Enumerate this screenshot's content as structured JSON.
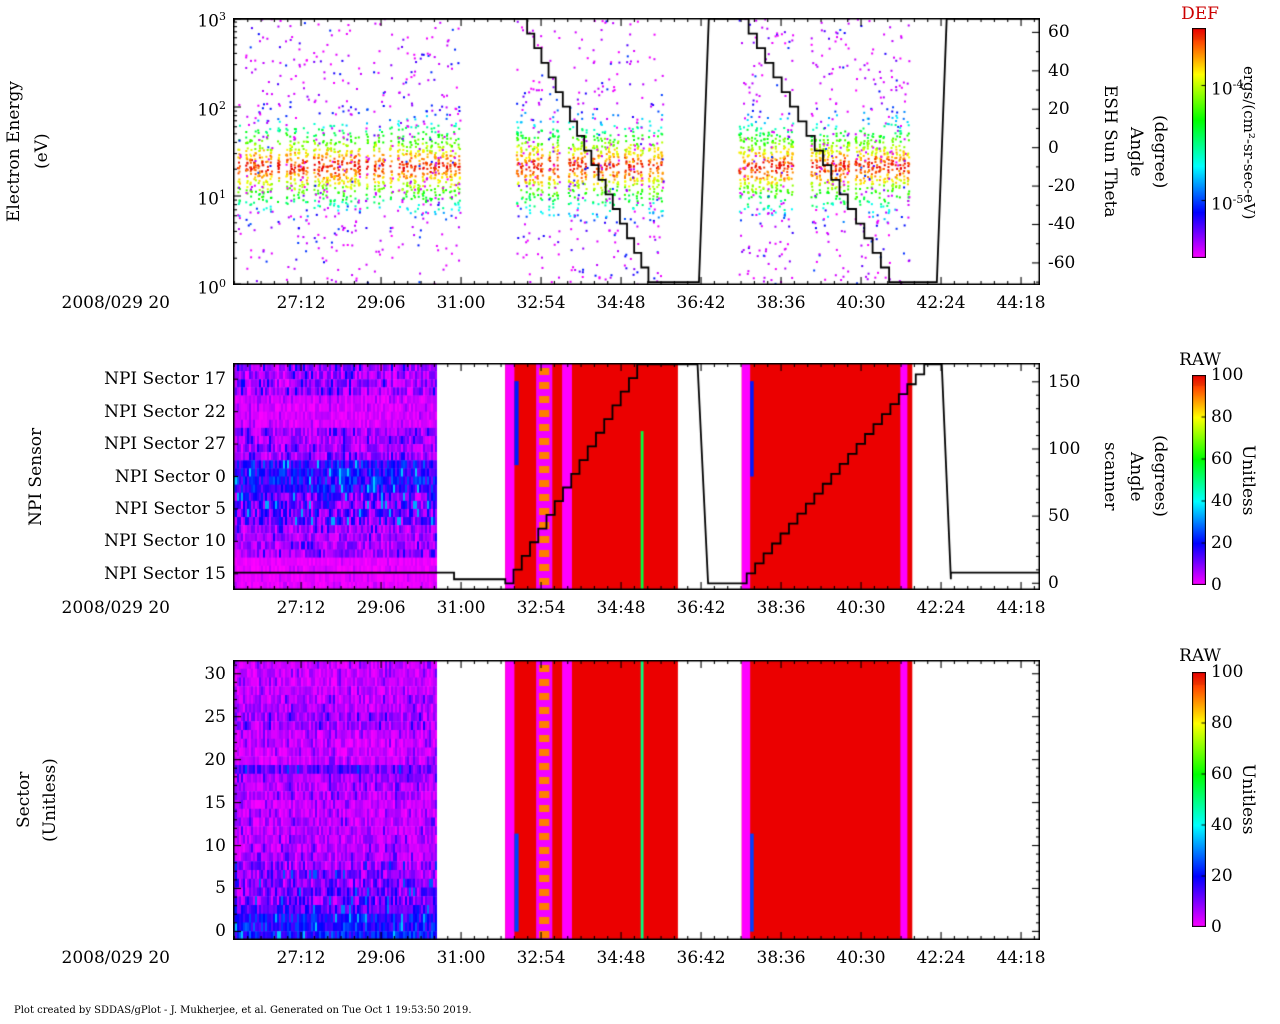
{
  "figure": {
    "background": "#ffffff"
  },
  "footer": {
    "credit": "Plot created by SDDAS/gPlot - J. Mukherjee, et al.  Generated on Tue Oct 1 19:53:50 2019."
  },
  "chart_data": [
    {
      "id": "electron-energy-spectrogram",
      "type": "heatmap",
      "left_title_lines": [
        "Electron Energy",
        "(eV)"
      ],
      "y_axis": {
        "scale": "log",
        "unit": "eV",
        "range_exp": [
          0,
          3
        ],
        "ticks": [
          {
            "base": "10",
            "exp": "3",
            "value": 3
          },
          {
            "base": "10",
            "exp": "2",
            "value": 2
          },
          {
            "base": "10",
            "exp": "1",
            "value": 1
          },
          {
            "base": "10",
            "exp": "0",
            "value": 0
          }
        ]
      },
      "right_axis": {
        "label_lines": [
          "ESH Sun Theta",
          "Angle",
          "(degree)"
        ],
        "ticks": [
          60,
          40,
          20,
          0,
          -20,
          -40,
          -60
        ],
        "minor_step": 10,
        "range": [
          -71.5,
          67.5
        ]
      },
      "x_axis": {
        "date_label": "2008/029 20",
        "range_seconds": [
          1535,
          2685
        ],
        "minor_divisions": 6,
        "ticks": [
          {
            "label": "27:12",
            "t": 1632
          },
          {
            "label": "29:06",
            "t": 1746
          },
          {
            "label": "31:00",
            "t": 1860
          },
          {
            "label": "32:54",
            "t": 1974
          },
          {
            "label": "34:48",
            "t": 2088
          },
          {
            "label": "36:42",
            "t": 2202
          },
          {
            "label": "38:36",
            "t": 2316
          },
          {
            "label": "40:30",
            "t": 2430
          },
          {
            "label": "42:24",
            "t": 2544
          },
          {
            "label": "44:18",
            "t": 2658
          }
        ]
      },
      "colorbar": {
        "title": "DEF",
        "title_color": "#cc0000",
        "unit_label": "ergs/(cm²-sr-sec-eV)",
        "scale": "log",
        "range_exp": [
          -5.5,
          -3.5
        ],
        "ticks": [
          {
            "base": "10",
            "exp": "-4",
            "value": -4
          },
          {
            "base": "10",
            "exp": "-5",
            "value": -5
          }
        ]
      },
      "spectrum": {
        "peak_log_energy": 1.34,
        "sigma": 0.26
      },
      "bursts": [
        {
          "t0": 1535,
          "t1": 1855
        },
        {
          "t0": 1938,
          "t1": 2145
        },
        {
          "t0": 2255,
          "t1": 2500
        }
      ],
      "line": {
        "name": "esh-sun-theta-angle",
        "color": "#000000",
        "segments": [
          {
            "type": "flat",
            "t0": 1535,
            "t1": 1944,
            "v": 67
          },
          {
            "type": "stair",
            "t0": 1944,
            "t1": 2127,
            "v0": 67,
            "v1": -70,
            "steps": 18
          },
          {
            "type": "flat",
            "t0": 2127,
            "t1": 2199,
            "v": -70
          },
          {
            "type": "ramp",
            "t0": 2199,
            "t1": 2213,
            "v0": -70,
            "v1": 67
          },
          {
            "type": "flat",
            "t0": 2213,
            "t1": 2258,
            "v": 67
          },
          {
            "type": "stair",
            "t0": 2258,
            "t1": 2470,
            "v0": 67,
            "v1": -70,
            "steps": 18
          },
          {
            "type": "flat",
            "t0": 2470,
            "t1": 2538,
            "v": -70
          },
          {
            "type": "ramp",
            "t0": 2538,
            "t1": 2552,
            "v0": -70,
            "v1": 67
          },
          {
            "type": "flat",
            "t0": 2552,
            "t1": 2685,
            "v": 67
          }
        ]
      }
    },
    {
      "id": "npi-sensor-spectrogram",
      "type": "heatmap",
      "left_title_lines": [
        "NPI Sensor"
      ],
      "row_labels": [
        "NPI Sector 17",
        "NPI Sector 22",
        "NPI Sector 27",
        "NPI Sector 0",
        "NPI Sector 5",
        "NPI Sector 10",
        "NPI Sector 15"
      ],
      "rows": {
        "order": "top-to-bottom",
        "base": [
          5,
          2,
          5,
          16,
          9,
          5,
          1
        ],
        "noise": [
          7,
          3,
          6,
          9,
          11,
          6,
          2
        ]
      },
      "right_axis": {
        "label_lines": [
          "scanner",
          "Angle",
          "(degrees)"
        ],
        "ticks": [
          150,
          100,
          50,
          0
        ],
        "minor_step": 10,
        "range": [
          -5,
          164
        ]
      },
      "x_axis": {
        "date_label": "2008/029 20",
        "range_seconds": [
          1535,
          2685
        ],
        "minor_divisions": 6,
        "ticks": [
          {
            "label": "27:12",
            "t": 1632
          },
          {
            "label": "29:06",
            "t": 1746
          },
          {
            "label": "31:00",
            "t": 1860
          },
          {
            "label": "32:54",
            "t": 1974
          },
          {
            "label": "34:48",
            "t": 2088
          },
          {
            "label": "36:42",
            "t": 2202
          },
          {
            "label": "38:36",
            "t": 2316
          },
          {
            "label": "40:30",
            "t": 2430
          },
          {
            "label": "42:24",
            "t": 2544
          },
          {
            "label": "44:18",
            "t": 2658
          }
        ]
      },
      "colorbar": {
        "title": "RAW",
        "title_color": "#000000",
        "unit_label": "Unitless",
        "range": [
          0,
          100
        ],
        "ticks": [
          100,
          80,
          60,
          40,
          20,
          0
        ]
      },
      "regions": [
        {
          "type": "noise",
          "t0": 1535,
          "t1": 1823
        },
        {
          "type": "solid",
          "t0": 1923,
          "t1": 2169,
          "value": 100
        },
        {
          "type": "solid",
          "t0": 1923,
          "t1": 1936,
          "value": 0
        },
        {
          "type": "sliver",
          "t0": 1936,
          "t1": 1942,
          "f0": 0.08,
          "f1": 0.45,
          "value": 22
        },
        {
          "type": "dashes",
          "t0": 1967,
          "t1": 1990,
          "bg_value": 1,
          "dash_value": 90
        },
        {
          "type": "solid",
          "t0": 2004,
          "t1": 2018,
          "value": 0
        },
        {
          "type": "sliver",
          "t0": 2116,
          "t1": 2120,
          "f0": 0.3,
          "f1": 1.0,
          "value": 55
        },
        {
          "type": "solid",
          "t0": 2260,
          "t1": 2503,
          "value": 100
        },
        {
          "type": "solid",
          "t0": 2260,
          "t1": 2272,
          "value": 0
        },
        {
          "type": "sliver",
          "t0": 2272,
          "t1": 2277,
          "f0": 0.08,
          "f1": 0.5,
          "value": 22
        },
        {
          "type": "solid",
          "t0": 2486,
          "t1": 2496,
          "value": 0
        }
      ],
      "line": {
        "name": "scanner-angle",
        "color": "#000000",
        "segments": [
          {
            "type": "flat",
            "t0": 1535,
            "t1": 1850,
            "v": 8
          },
          {
            "type": "flat",
            "t0": 1850,
            "t1": 1923,
            "v": 3
          },
          {
            "type": "stair",
            "t0": 1923,
            "t1": 2111,
            "v0": 0,
            "v1": 163,
            "steps": 16
          },
          {
            "type": "flat",
            "t0": 2111,
            "t1": 2197,
            "v": 163
          },
          {
            "type": "ramp",
            "t0": 2197,
            "t1": 2212,
            "v0": 163,
            "v1": 0
          },
          {
            "type": "flat",
            "t0": 2212,
            "t1": 2255,
            "v": 0
          },
          {
            "type": "stair",
            "t0": 2255,
            "t1": 2520,
            "v0": 0,
            "v1": 163,
            "steps": 22
          },
          {
            "type": "flat",
            "t0": 2520,
            "t1": 2545,
            "v": 163
          },
          {
            "type": "ramp",
            "t0": 2545,
            "t1": 2558,
            "v0": 163,
            "v1": 3
          },
          {
            "type": "flat",
            "t0": 2558,
            "t1": 2685,
            "v": 8
          }
        ]
      }
    },
    {
      "id": "sector-spectrogram",
      "type": "heatmap",
      "left_title_lines": [
        "Sector",
        "(Unitless)"
      ],
      "y_axis": {
        "ticks": [
          30,
          25,
          20,
          15,
          10,
          5,
          0
        ],
        "minor_step": 1,
        "range": [
          -1,
          31.6
        ]
      },
      "rows": {
        "order": "bottom-to-top",
        "base": [
          18,
          18,
          16,
          12,
          8,
          8,
          7,
          7,
          6,
          4,
          4,
          4,
          4,
          4,
          3,
          3,
          4,
          4,
          5,
          10,
          3,
          3,
          3,
          3,
          5,
          5,
          4,
          4,
          3,
          3,
          3,
          3
        ],
        "noise": [
          8,
          8,
          8,
          8,
          9,
          9,
          9,
          9,
          8,
          5,
          5,
          5,
          5,
          5,
          4,
          4,
          5,
          5,
          5,
          7,
          4,
          4,
          4,
          4,
          6,
          6,
          5,
          5,
          4,
          4,
          4,
          4
        ]
      },
      "x_axis": {
        "date_label": "2008/029 20",
        "range_seconds": [
          1535,
          2685
        ],
        "minor_divisions": 6,
        "ticks": [
          {
            "label": "27:12",
            "t": 1632
          },
          {
            "label": "29:06",
            "t": 1746
          },
          {
            "label": "31:00",
            "t": 1860
          },
          {
            "label": "32:54",
            "t": 1974
          },
          {
            "label": "34:48",
            "t": 2088
          },
          {
            "label": "36:42",
            "t": 2202
          },
          {
            "label": "38:36",
            "t": 2316
          },
          {
            "label": "40:30",
            "t": 2430
          },
          {
            "label": "42:24",
            "t": 2544
          },
          {
            "label": "44:18",
            "t": 2658
          }
        ]
      },
      "colorbar": {
        "title": "RAW",
        "title_color": "#000000",
        "unit_label": "Unitless",
        "range": [
          0,
          100
        ],
        "ticks": [
          100,
          80,
          60,
          40,
          20,
          0
        ]
      },
      "regions": [
        {
          "type": "noise",
          "t0": 1535,
          "t1": 1823
        },
        {
          "type": "solid",
          "t0": 1923,
          "t1": 2169,
          "value": 100
        },
        {
          "type": "solid",
          "t0": 1923,
          "t1": 1936,
          "value": 0
        },
        {
          "type": "sliver",
          "t0": 1936,
          "t1": 1942,
          "f0": 0.62,
          "f1": 0.97,
          "value": 25
        },
        {
          "type": "dashes",
          "t0": 1967,
          "t1": 1990,
          "bg_value": 1,
          "dash_value": 90
        },
        {
          "type": "solid",
          "t0": 2004,
          "t1": 2018,
          "value": 0
        },
        {
          "type": "sliver",
          "t0": 2116,
          "t1": 2120,
          "f0": 0.0,
          "f1": 1.0,
          "value": 50
        },
        {
          "type": "solid",
          "t0": 2260,
          "t1": 2503,
          "value": 100
        },
        {
          "type": "solid",
          "t0": 2260,
          "t1": 2272,
          "value": 0
        },
        {
          "type": "sliver",
          "t0": 2272,
          "t1": 2277,
          "f0": 0.62,
          "f1": 0.97,
          "value": 25
        },
        {
          "type": "solid",
          "t0": 2486,
          "t1": 2496,
          "value": 0
        }
      ]
    }
  ]
}
